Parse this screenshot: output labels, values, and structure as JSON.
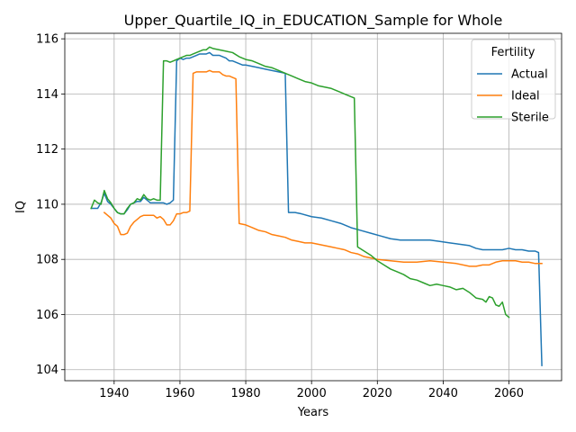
{
  "chart_data": {
    "type": "line",
    "title": "Upper_Quartile_IQ_in_EDUCATION_Sample for Whole",
    "xlabel": "Years",
    "ylabel": "IQ",
    "xlim": [
      1925,
      2076
    ],
    "ylim": [
      103.6,
      116.2
    ],
    "xticks": [
      1940,
      1960,
      1980,
      2000,
      2020,
      2040,
      2060
    ],
    "yticks": [
      104,
      106,
      108,
      110,
      112,
      114,
      116
    ],
    "grid": true,
    "legend": {
      "title": "Fertility",
      "position": "upper right"
    },
    "series": [
      {
        "name": "Actual",
        "color": "#1f77b4",
        "points": [
          [
            1933,
            109.85
          ],
          [
            1934,
            109.85
          ],
          [
            1935,
            109.85
          ],
          [
            1936,
            110.05
          ],
          [
            1937,
            110.4
          ],
          [
            1938,
            110.1
          ],
          [
            1939,
            110.0
          ],
          [
            1940,
            109.85
          ],
          [
            1941,
            109.7
          ],
          [
            1942,
            109.65
          ],
          [
            1943,
            109.65
          ],
          [
            1944,
            109.8
          ],
          [
            1945,
            110.0
          ],
          [
            1946,
            110.05
          ],
          [
            1947,
            110.1
          ],
          [
            1948,
            110.1
          ],
          [
            1949,
            110.25
          ],
          [
            1950,
            110.15
          ],
          [
            1951,
            110.05
          ],
          [
            1952,
            110.05
          ],
          [
            1953,
            110.05
          ],
          [
            1954,
            110.05
          ],
          [
            1955,
            110.05
          ],
          [
            1956,
            110.0
          ],
          [
            1957,
            110.05
          ],
          [
            1958,
            110.15
          ],
          [
            1959,
            115.2
          ],
          [
            1960,
            115.3
          ],
          [
            1961,
            115.25
          ],
          [
            1962,
            115.3
          ],
          [
            1963,
            115.3
          ],
          [
            1964,
            115.35
          ],
          [
            1965,
            115.4
          ],
          [
            1966,
            115.45
          ],
          [
            1967,
            115.45
          ],
          [
            1968,
            115.45
          ],
          [
            1969,
            115.5
          ],
          [
            1970,
            115.4
          ],
          [
            1971,
            115.4
          ],
          [
            1972,
            115.4
          ],
          [
            1973,
            115.35
          ],
          [
            1974,
            115.3
          ],
          [
            1975,
            115.2
          ],
          [
            1976,
            115.2
          ],
          [
            1977,
            115.15
          ],
          [
            1978,
            115.1
          ],
          [
            1979,
            115.05
          ],
          [
            1980,
            115.05
          ],
          [
            1982,
            115.0
          ],
          [
            1984,
            114.95
          ],
          [
            1986,
            114.9
          ],
          [
            1988,
            114.85
          ],
          [
            1990,
            114.8
          ],
          [
            1992,
            114.75
          ],
          [
            1993,
            109.7
          ],
          [
            1995,
            109.7
          ],
          [
            1997,
            109.65
          ],
          [
            2000,
            109.55
          ],
          [
            2003,
            109.5
          ],
          [
            2006,
            109.4
          ],
          [
            2009,
            109.3
          ],
          [
            2012,
            109.15
          ],
          [
            2015,
            109.05
          ],
          [
            2018,
            108.95
          ],
          [
            2021,
            108.85
          ],
          [
            2024,
            108.75
          ],
          [
            2027,
            108.7
          ],
          [
            2030,
            108.7
          ],
          [
            2033,
            108.7
          ],
          [
            2036,
            108.7
          ],
          [
            2039,
            108.65
          ],
          [
            2042,
            108.6
          ],
          [
            2045,
            108.55
          ],
          [
            2048,
            108.5
          ],
          [
            2050,
            108.4
          ],
          [
            2052,
            108.35
          ],
          [
            2054,
            108.35
          ],
          [
            2056,
            108.35
          ],
          [
            2058,
            108.35
          ],
          [
            2060,
            108.4
          ],
          [
            2062,
            108.35
          ],
          [
            2064,
            108.35
          ],
          [
            2066,
            108.3
          ],
          [
            2068,
            108.3
          ],
          [
            2069,
            108.25
          ],
          [
            2070,
            104.15
          ]
        ]
      },
      {
        "name": "Ideal",
        "color": "#ff7f0e",
        "points": [
          [
            1937,
            109.7
          ],
          [
            1938,
            109.6
          ],
          [
            1939,
            109.5
          ],
          [
            1940,
            109.3
          ],
          [
            1941,
            109.2
          ],
          [
            1942,
            108.9
          ],
          [
            1943,
            108.9
          ],
          [
            1944,
            108.95
          ],
          [
            1945,
            109.2
          ],
          [
            1946,
            109.35
          ],
          [
            1947,
            109.45
          ],
          [
            1948,
            109.55
          ],
          [
            1949,
            109.6
          ],
          [
            1950,
            109.6
          ],
          [
            1951,
            109.6
          ],
          [
            1952,
            109.6
          ],
          [
            1953,
            109.5
          ],
          [
            1954,
            109.55
          ],
          [
            1955,
            109.45
          ],
          [
            1956,
            109.25
          ],
          [
            1957,
            109.25
          ],
          [
            1958,
            109.4
          ],
          [
            1959,
            109.65
          ],
          [
            1960,
            109.65
          ],
          [
            1961,
            109.7
          ],
          [
            1962,
            109.7
          ],
          [
            1963,
            109.75
          ],
          [
            1964,
            114.75
          ],
          [
            1965,
            114.8
          ],
          [
            1966,
            114.8
          ],
          [
            1967,
            114.8
          ],
          [
            1968,
            114.8
          ],
          [
            1969,
            114.85
          ],
          [
            1970,
            114.8
          ],
          [
            1971,
            114.8
          ],
          [
            1972,
            114.8
          ],
          [
            1973,
            114.7
          ],
          [
            1974,
            114.65
          ],
          [
            1975,
            114.65
          ],
          [
            1976,
            114.6
          ],
          [
            1977,
            114.55
          ],
          [
            1978,
            109.3
          ],
          [
            1980,
            109.25
          ],
          [
            1982,
            109.15
          ],
          [
            1984,
            109.05
          ],
          [
            1986,
            109.0
          ],
          [
            1988,
            108.9
          ],
          [
            1990,
            108.85
          ],
          [
            1992,
            108.8
          ],
          [
            1994,
            108.7
          ],
          [
            1996,
            108.65
          ],
          [
            1998,
            108.6
          ],
          [
            2000,
            108.6
          ],
          [
            2002,
            108.55
          ],
          [
            2004,
            108.5
          ],
          [
            2006,
            108.45
          ],
          [
            2008,
            108.4
          ],
          [
            2010,
            108.35
          ],
          [
            2012,
            108.25
          ],
          [
            2014,
            108.2
          ],
          [
            2016,
            108.1
          ],
          [
            2018,
            108.05
          ],
          [
            2020,
            108.0
          ],
          [
            2024,
            107.95
          ],
          [
            2028,
            107.9
          ],
          [
            2032,
            107.9
          ],
          [
            2036,
            107.95
          ],
          [
            2040,
            107.9
          ],
          [
            2044,
            107.85
          ],
          [
            2048,
            107.75
          ],
          [
            2050,
            107.75
          ],
          [
            2052,
            107.8
          ],
          [
            2054,
            107.8
          ],
          [
            2056,
            107.9
          ],
          [
            2058,
            107.95
          ],
          [
            2060,
            107.95
          ],
          [
            2062,
            107.95
          ],
          [
            2064,
            107.9
          ],
          [
            2066,
            107.9
          ],
          [
            2068,
            107.85
          ],
          [
            2070,
            107.85
          ]
        ]
      },
      {
        "name": "Sterile",
        "color": "#2ca02c",
        "points": [
          [
            1933,
            109.85
          ],
          [
            1934,
            110.15
          ],
          [
            1935,
            110.05
          ],
          [
            1936,
            110.0
          ],
          [
            1937,
            110.5
          ],
          [
            1938,
            110.2
          ],
          [
            1939,
            110.05
          ],
          [
            1940,
            109.85
          ],
          [
            1941,
            109.7
          ],
          [
            1942,
            109.65
          ],
          [
            1943,
            109.65
          ],
          [
            1944,
            109.85
          ],
          [
            1945,
            110.0
          ],
          [
            1946,
            110.05
          ],
          [
            1947,
            110.2
          ],
          [
            1948,
            110.15
          ],
          [
            1949,
            110.35
          ],
          [
            1950,
            110.2
          ],
          [
            1951,
            110.15
          ],
          [
            1952,
            110.2
          ],
          [
            1953,
            110.15
          ],
          [
            1954,
            110.15
          ],
          [
            1955,
            115.2
          ],
          [
            1956,
            115.2
          ],
          [
            1957,
            115.15
          ],
          [
            1958,
            115.2
          ],
          [
            1959,
            115.25
          ],
          [
            1960,
            115.3
          ],
          [
            1961,
            115.35
          ],
          [
            1962,
            115.4
          ],
          [
            1963,
            115.4
          ],
          [
            1964,
            115.45
          ],
          [
            1965,
            115.5
          ],
          [
            1966,
            115.55
          ],
          [
            1967,
            115.6
          ],
          [
            1968,
            115.6
          ],
          [
            1969,
            115.7
          ],
          [
            1970,
            115.65
          ],
          [
            1972,
            115.6
          ],
          [
            1974,
            115.55
          ],
          [
            1976,
            115.5
          ],
          [
            1978,
            115.35
          ],
          [
            1980,
            115.25
          ],
          [
            1982,
            115.2
          ],
          [
            1984,
            115.1
          ],
          [
            1986,
            115.0
          ],
          [
            1988,
            114.95
          ],
          [
            1990,
            114.85
          ],
          [
            1992,
            114.75
          ],
          [
            1994,
            114.65
          ],
          [
            1996,
            114.55
          ],
          [
            1998,
            114.45
          ],
          [
            2000,
            114.4
          ],
          [
            2002,
            114.3
          ],
          [
            2004,
            114.25
          ],
          [
            2006,
            114.2
          ],
          [
            2008,
            114.1
          ],
          [
            2010,
            114.0
          ],
          [
            2012,
            113.9
          ],
          [
            2013,
            113.85
          ],
          [
            2014,
            108.45
          ],
          [
            2016,
            108.3
          ],
          [
            2018,
            108.15
          ],
          [
            2020,
            107.95
          ],
          [
            2022,
            107.8
          ],
          [
            2024,
            107.65
          ],
          [
            2026,
            107.55
          ],
          [
            2028,
            107.45
          ],
          [
            2030,
            107.3
          ],
          [
            2032,
            107.25
          ],
          [
            2034,
            107.15
          ],
          [
            2036,
            107.05
          ],
          [
            2038,
            107.1
          ],
          [
            2040,
            107.05
          ],
          [
            2042,
            107.0
          ],
          [
            2044,
            106.9
          ],
          [
            2046,
            106.95
          ],
          [
            2048,
            106.8
          ],
          [
            2050,
            106.6
          ],
          [
            2052,
            106.55
          ],
          [
            2053,
            106.45
          ],
          [
            2054,
            106.65
          ],
          [
            2055,
            106.6
          ],
          [
            2056,
            106.35
          ],
          [
            2057,
            106.3
          ],
          [
            2058,
            106.45
          ],
          [
            2059,
            106.0
          ],
          [
            2060,
            105.9
          ]
        ]
      }
    ]
  }
}
